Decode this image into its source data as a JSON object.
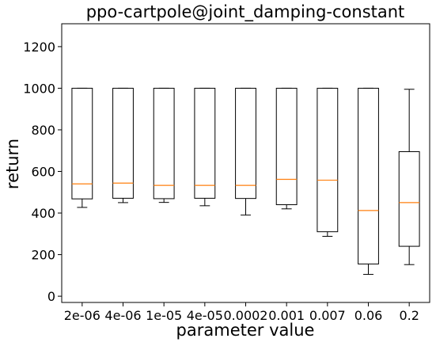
{
  "chart_data": {
    "type": "boxplot",
    "title": "ppo-cartpole@joint_damping-constant",
    "xlabel": "parameter value",
    "ylabel": "return",
    "ylim": [
      -30,
      1310
    ],
    "yticks": [
      0,
      200,
      400,
      600,
      800,
      1000,
      1200
    ],
    "grid": false,
    "categories": [
      "2e-06",
      "4e-06",
      "1e-05",
      "4e-05",
      "0.0002",
      "0.001",
      "0.007",
      "0.06",
      "0.2"
    ],
    "boxes": [
      {
        "whisker_low": 427,
        "q1": 468,
        "median": 540,
        "q3": 1000,
        "whisker_high": 1000
      },
      {
        "whisker_low": 450,
        "q1": 471,
        "median": 544,
        "q3": 1000,
        "whisker_high": 1000
      },
      {
        "whisker_low": 451,
        "q1": 469,
        "median": 533,
        "q3": 1000,
        "whisker_high": 1000
      },
      {
        "whisker_low": 435,
        "q1": 471,
        "median": 533,
        "q3": 1000,
        "whisker_high": 1000
      },
      {
        "whisker_low": 390,
        "q1": 470,
        "median": 533,
        "q3": 1000,
        "whisker_high": 1000
      },
      {
        "whisker_low": 420,
        "q1": 440,
        "median": 562,
        "q3": 1000,
        "whisker_high": 1000
      },
      {
        "whisker_low": 288,
        "q1": 310,
        "median": 558,
        "q3": 1000,
        "whisker_high": 1000
      },
      {
        "whisker_low": 105,
        "q1": 155,
        "median": 412,
        "q3": 1000,
        "whisker_high": 1000
      },
      {
        "whisker_low": 152,
        "q1": 240,
        "median": 450,
        "q3": 695,
        "whisker_high": 995
      }
    ],
    "colors": {
      "box": "#000000",
      "median": "#ff7f0e",
      "axis": "#000000",
      "background": "#ffffff"
    }
  }
}
